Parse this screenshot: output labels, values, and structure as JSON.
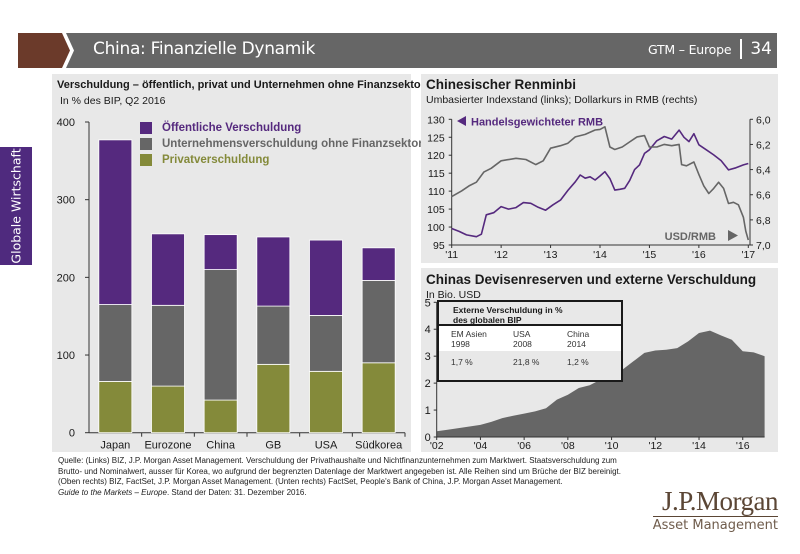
{
  "header": {
    "title": "China: Finanzielle Dynamik",
    "series_label": "GTM – Europe",
    "page_number": "34",
    "accent_color": "#6b3a2a",
    "bar_color": "#666666"
  },
  "side_tab": {
    "label": "Globale Wirtschaft",
    "color": "#4f2a7e"
  },
  "footer": {
    "lines": [
      "Quelle: (Links) BIZ, J.P. Morgan Asset Management. Verschuldung der Privathaushalte und Nichtfinanzunternehmen zum Marktwert. Staatsverschuldung zum",
      "Brutto- und Nominalwert, ausser für Korea, wo aufgrund der begrenzten Datenlage der Marktwert angegeben ist. Alle Reihen sind um Brüche der BIZ bereinigt.",
      "(Oben rechts) BIZ, FactSet, J.P. Morgan Asset Management. (Unten rechts) FactSet, People's Bank of China, J.P. Morgan Asset Management."
    ],
    "guide_italic": "Guide to the Markets – Europe",
    "guide_rest": ". Stand der Daten: 31. Dezember 2016."
  },
  "logo": {
    "main": "J.P.Morgan",
    "sub": "Asset Management"
  },
  "chart_data": [
    {
      "type": "bar",
      "stacked": true,
      "title": "Verschuldung – öffentlich, privat und Unternehmen ohne Finanzsektor",
      "subtitle": "In % des BIP, Q2 2016",
      "categories": [
        "Japan",
        "Eurozone",
        "China",
        "GB",
        "USA",
        "Südkorea"
      ],
      "series": [
        {
          "name": "Privatverschuldung",
          "color": "#848a3a",
          "values": [
            66,
            60,
            42,
            88,
            79,
            90
          ]
        },
        {
          "name": "Unternehmensverschuldung ohne Finanzsektor",
          "color": "#666666",
          "values": [
            99,
            104,
            168,
            75,
            72,
            106
          ]
        },
        {
          "name": "Öffentliche Verschuldung",
          "color": "#55297e",
          "values": [
            212,
            92,
            45,
            89,
            97,
            42
          ]
        }
      ],
      "legend_order": [
        "Öffentliche Verschuldung",
        "Unternehmensverschuldung ohne Finanzsektor",
        "Privatverschuldung"
      ],
      "legend_colors": [
        "#55297e",
        "#666666",
        "#848a3a"
      ],
      "legend_position": "top-right",
      "yticks": [
        0,
        100,
        200,
        300,
        400
      ],
      "ylim": [
        0,
        400
      ],
      "xlabel": "",
      "ylabel": ""
    },
    {
      "type": "line",
      "title": "Chinesischer Renminbi",
      "subtitle": "Umbasierter Indexstand (links); Dollarkurs in RMB (rechts)",
      "xlim": [
        2011,
        2017
      ],
      "xticks": [
        2011,
        2012,
        2013,
        2014,
        2015,
        2016,
        2017
      ],
      "xticklabels": [
        "'11",
        "'12",
        "'13",
        "'14",
        "'15",
        "'16",
        "'17"
      ],
      "y_left": {
        "lim": [
          95,
          130
        ],
        "ticks": [
          95,
          100,
          105,
          110,
          115,
          120,
          125,
          130
        ]
      },
      "y_right": {
        "lim": [
          6.0,
          7.0
        ],
        "inverted": true,
        "ticks": [
          "6,0",
          "6,2",
          "6,4",
          "6,6",
          "6,8",
          "7,0"
        ]
      },
      "series": [
        {
          "name": "Handelsgewichteter RMB",
          "axis": "left",
          "color": "#55297e",
          "x": [
            2011.0,
            2011.15,
            2011.3,
            2011.5,
            2011.6,
            2011.7,
            2011.85,
            2012.0,
            2012.15,
            2012.3,
            2012.45,
            2012.6,
            2012.75,
            2012.9,
            2013.05,
            2013.2,
            2013.35,
            2013.5,
            2013.6,
            2013.7,
            2013.8,
            2013.9,
            2014.0,
            2014.1,
            2014.2,
            2014.3,
            2014.4,
            2014.5,
            2014.6,
            2014.7,
            2014.8,
            2014.9,
            2015.0,
            2015.15,
            2015.3,
            2015.45,
            2015.6,
            2015.7,
            2015.8,
            2015.9,
            2016.0,
            2016.15,
            2016.3,
            2016.45,
            2016.6,
            2016.75,
            2016.9,
            2017.0
          ],
          "y": [
            99.6,
            98.8,
            97.8,
            97.3,
            98.0,
            103.4,
            104.0,
            105.7,
            105.0,
            105.4,
            106.8,
            106.6,
            105.5,
            104.7,
            106.2,
            107.5,
            110.2,
            112.6,
            114.5,
            113.6,
            114.0,
            113.1,
            114.2,
            115.4,
            113.5,
            110.3,
            110.5,
            110.8,
            113.0,
            116.0,
            117.3,
            120.5,
            121.5,
            124.0,
            125.2,
            124.5,
            127.0,
            125.0,
            123.8,
            126.0,
            122.9,
            121.5,
            120.1,
            118.5,
            115.9,
            116.5,
            117.3,
            117.7
          ]
        },
        {
          "name": "USD/RMB",
          "axis": "right",
          "color": "#666666",
          "x": [
            2011.0,
            2011.2,
            2011.35,
            2011.5,
            2011.65,
            2011.8,
            2012.0,
            2012.3,
            2012.5,
            2012.7,
            2012.85,
            2013.0,
            2013.2,
            2013.35,
            2013.5,
            2013.7,
            2013.9,
            2014.0,
            2014.1,
            2014.2,
            2014.3,
            2014.45,
            2014.6,
            2014.75,
            2014.9,
            2015.0,
            2015.15,
            2015.3,
            2015.45,
            2015.6,
            2015.65,
            2015.75,
            2015.9,
            2016.0,
            2016.1,
            2016.2,
            2016.3,
            2016.4,
            2016.5,
            2016.6,
            2016.7,
            2016.8,
            2016.9,
            2016.95,
            2017.0
          ],
          "y": [
            6.615,
            6.57,
            6.53,
            6.5,
            6.42,
            6.39,
            6.33,
            6.31,
            6.32,
            6.36,
            6.33,
            6.23,
            6.21,
            6.19,
            6.14,
            6.12,
            6.085,
            6.08,
            6.06,
            6.22,
            6.24,
            6.22,
            6.18,
            6.14,
            6.13,
            6.22,
            6.22,
            6.2,
            6.21,
            6.2,
            6.36,
            6.37,
            6.34,
            6.44,
            6.53,
            6.59,
            6.55,
            6.5,
            6.55,
            6.67,
            6.66,
            6.68,
            6.78,
            6.89,
            6.96
          ]
        }
      ],
      "annotations": [
        {
          "text": "Handelsgewichteter RMB",
          "color": "#55297e",
          "arrow": "left",
          "position": "top-left"
        },
        {
          "text": "USD/RMB",
          "color": "#666666",
          "arrow": "right",
          "position": "bottom-right"
        }
      ]
    },
    {
      "type": "area",
      "title": "Chinas Devisenreserven und externe Verschuldung",
      "subtitle": "In Bio. USD",
      "color": "#666666",
      "xlim": [
        2002,
        2017
      ],
      "xticks": [
        2002,
        2004,
        2006,
        2008,
        2010,
        2012,
        2014,
        2016
      ],
      "xticklabels": [
        "'02",
        "'04",
        "'06",
        "'08",
        "'10",
        "'12",
        "'14",
        "'16"
      ],
      "ylim": [
        0,
        5
      ],
      "yticks": [
        0,
        1,
        2,
        3,
        4,
        5
      ],
      "x": [
        2002.0,
        2002.5,
        2003.0,
        2003.5,
        2004.0,
        2004.5,
        2005.0,
        2005.5,
        2006.0,
        2006.5,
        2007.0,
        2007.5,
        2008.0,
        2008.5,
        2009.0,
        2009.5,
        2010.0,
        2010.5,
        2011.0,
        2011.5,
        2012.0,
        2012.5,
        2013.0,
        2013.5,
        2014.0,
        2014.5,
        2015.0,
        2015.5,
        2016.0,
        2016.5,
        2017.0
      ],
      "y": [
        0.21,
        0.27,
        0.33,
        0.39,
        0.45,
        0.56,
        0.7,
        0.79,
        0.87,
        0.95,
        1.07,
        1.39,
        1.57,
        1.82,
        1.92,
        2.13,
        2.31,
        2.5,
        2.81,
        3.12,
        3.21,
        3.24,
        3.3,
        3.55,
        3.86,
        3.95,
        3.77,
        3.61,
        3.18,
        3.14,
        3.0
      ],
      "inset_table": {
        "title_line1": "Externe Verschuldung in %",
        "title_line2": "des globalen BIP",
        "columns": [
          {
            "name": "EM Asien",
            "year": "1998",
            "value": "1,7 %"
          },
          {
            "name": "USA",
            "year": "2008",
            "value": "21,8 %"
          },
          {
            "name": "China",
            "year": "2014",
            "value": "1,2 %"
          }
        ]
      }
    }
  ]
}
